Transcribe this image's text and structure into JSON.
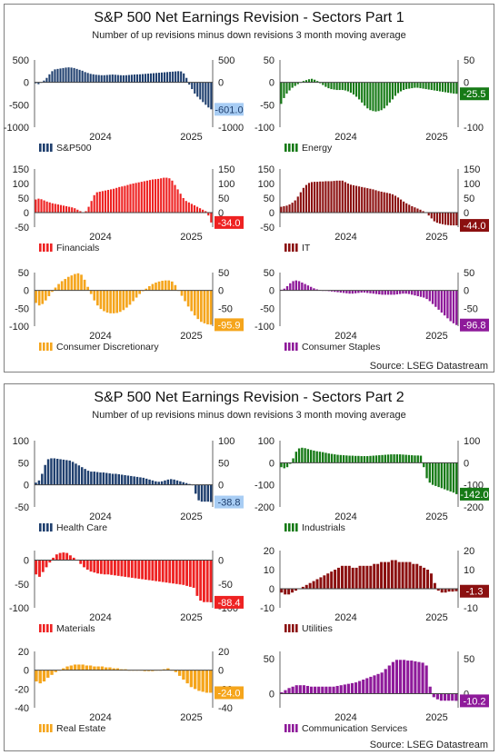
{
  "panels": [
    {
      "title": "S&P 500 Net Earnings Revision - Sectors Part 1",
      "subtitle": "Number of up revisions minus down revisions 3 month moving average",
      "source": "Source: LSEG Datastream"
    },
    {
      "title": "S&P 500 Net Earnings Revision - Sectors Part 2",
      "subtitle": "Number of up revisions minus down revisions 3 month moving average",
      "source": "Source: LSEG Datastream"
    }
  ],
  "chart_data": [
    {
      "type": "bar",
      "name": "S&P500",
      "color": "#1f3f6e",
      "label_color": "#a8cdf4",
      "label_text_color": "#1f3f6e",
      "last": "-601.0",
      "ylim": [
        -1000,
        500
      ],
      "left_ticks": [
        "500",
        "0",
        "-500",
        "-1000"
      ],
      "right_ticks": [
        "500",
        "0",
        "-500",
        "-1000"
      ],
      "right_label_visible": [
        true,
        true,
        false,
        true
      ],
      "x_ticks": [
        "2024",
        "2025"
      ],
      "values": [
        -20,
        -40,
        -10,
        40,
        100,
        180,
        250,
        290,
        300,
        310,
        320,
        330,
        335,
        330,
        320,
        300,
        280,
        260,
        230,
        210,
        190,
        180,
        170,
        165,
        160,
        160,
        165,
        170,
        175,
        170,
        165,
        160,
        158,
        160,
        165,
        170,
        175,
        178,
        180,
        185,
        190,
        195,
        200,
        205,
        210,
        215,
        220,
        225,
        230,
        235,
        240,
        245,
        250,
        245,
        200,
        100,
        -50,
        -150,
        -250,
        -320,
        -380,
        -440,
        -500,
        -560,
        -601
      ]
    },
    {
      "type": "bar",
      "name": "Energy",
      "color": "#167a16",
      "label_color": "#167a16",
      "label_text_color": "#ffffff",
      "last": "-25.5",
      "ylim": [
        -100,
        50
      ],
      "left_ticks": [
        "50",
        "0",
        "-50",
        "-100"
      ],
      "right_ticks": [
        "50",
        "0",
        "-50",
        "-100"
      ],
      "right_label_visible": [
        true,
        true,
        false,
        true
      ],
      "x_ticks": [
        "2024",
        "2025"
      ],
      "values": [
        -48,
        -35,
        -25,
        -18,
        -12,
        -8,
        -4,
        0,
        3,
        5,
        7,
        8,
        6,
        3,
        -2,
        -6,
        -10,
        -13,
        -15,
        -16,
        -17,
        -17,
        -17,
        -18,
        -20,
        -23,
        -27,
        -32,
        -38,
        -45,
        -52,
        -58,
        -62,
        -64,
        -65,
        -64,
        -62,
        -58,
        -52,
        -45,
        -38,
        -30,
        -24,
        -20,
        -17,
        -15,
        -14,
        -13,
        -12,
        -12,
        -13,
        -14,
        -15,
        -16,
        -17,
        -18,
        -19,
        -20,
        -21,
        -22,
        -23,
        -24,
        -25,
        -25.5
      ]
    },
    {
      "type": "bar",
      "name": "Financials",
      "color": "#ee2222",
      "label_color": "#ee2222",
      "label_text_color": "#ffffff",
      "last": "-34.0",
      "ylim": [
        -50,
        150
      ],
      "left_ticks": [
        "150",
        "100",
        "50",
        "0",
        "-50"
      ],
      "right_ticks": [
        "150",
        "100",
        "50",
        "0",
        "-50"
      ],
      "right_label_visible": [
        true,
        true,
        true,
        true,
        false
      ],
      "x_ticks": [
        "2024",
        "2025"
      ],
      "values": [
        45,
        48,
        46,
        42,
        38,
        35,
        32,
        30,
        28,
        26,
        24,
        22,
        20,
        18,
        15,
        10,
        5,
        0,
        5,
        20,
        40,
        60,
        70,
        72,
        74,
        76,
        78,
        80,
        82,
        85,
        88,
        90,
        92,
        95,
        98,
        100,
        102,
        104,
        106,
        108,
        110,
        112,
        114,
        115,
        116,
        118,
        120,
        120,
        118,
        110,
        95,
        80,
        65,
        50,
        40,
        35,
        30,
        25,
        20,
        15,
        10,
        5,
        -10,
        -34
      ]
    },
    {
      "type": "bar",
      "name": "IT",
      "color": "#8b1010",
      "label_color": "#8b1010",
      "label_text_color": "#ffffff",
      "last": "-44.0",
      "ylim": [
        -50,
        150
      ],
      "left_ticks": [
        "150",
        "100",
        "50",
        "0",
        "-50"
      ],
      "right_ticks": [
        "150",
        "100",
        "50",
        "0",
        "-50"
      ],
      "right_label_visible": [
        true,
        true,
        true,
        true,
        false
      ],
      "x_ticks": [
        "2024",
        "2025"
      ],
      "values": [
        20,
        22,
        24,
        28,
        34,
        42,
        55,
        70,
        85,
        95,
        102,
        105,
        106,
        106,
        107,
        107,
        108,
        108,
        108,
        109,
        110,
        110,
        110,
        105,
        100,
        96,
        94,
        92,
        90,
        88,
        86,
        84,
        82,
        80,
        77,
        74,
        72,
        70,
        68,
        66,
        63,
        58,
        52,
        45,
        38,
        32,
        27,
        22,
        18,
        14,
        10,
        5,
        0,
        -10,
        -20,
        -30,
        -35,
        -38,
        -40,
        -42,
        -43,
        -44,
        -44,
        -44
      ]
    },
    {
      "type": "bar",
      "name": "Consumer Discretionary",
      "color": "#f5a51c",
      "label_color": "#f5a51c",
      "label_text_color": "#ffffff",
      "last": "-95.9",
      "ylim": [
        -100,
        50
      ],
      "left_ticks": [
        "50",
        "0",
        "-50",
        "-100"
      ],
      "right_ticks": [
        "50",
        "0",
        "-50",
        "-100"
      ],
      "right_label_visible": [
        true,
        true,
        true,
        false
      ],
      "x_ticks": [
        "2024",
        "2025"
      ],
      "values": [
        -35,
        -42,
        -38,
        -28,
        -16,
        -4,
        8,
        18,
        26,
        32,
        38,
        42,
        46,
        48,
        44,
        30,
        10,
        -10,
        -28,
        -42,
        -52,
        -58,
        -62,
        -64,
        -64,
        -63,
        -60,
        -55,
        -48,
        -40,
        -30,
        -20,
        -10,
        -2,
        5,
        12,
        18,
        22,
        25,
        27,
        28,
        28,
        25,
        15,
        0,
        -15,
        -30,
        -45,
        -58,
        -70,
        -80,
        -88,
        -92,
        -95,
        -95.9
      ]
    },
    {
      "type": "bar",
      "name": "Consumer Staples",
      "color": "#8e1a9a",
      "label_color": "#8e1a9a",
      "label_text_color": "#ffffff",
      "last": "-96.8",
      "ylim": [
        -100,
        50
      ],
      "left_ticks": [
        "50",
        "0",
        "-50",
        "-100"
      ],
      "right_ticks": [
        "50",
        "0",
        "-50",
        "-100"
      ],
      "right_label_visible": [
        true,
        true,
        true,
        false
      ],
      "x_ticks": [
        "2024",
        "2025"
      ],
      "values": [
        2,
        5,
        12,
        20,
        26,
        28,
        26,
        22,
        18,
        14,
        10,
        6,
        3,
        1,
        0,
        -1,
        -2,
        -3,
        -4,
        -5,
        -6,
        -7,
        -8,
        -9,
        -9,
        -8,
        -7,
        -6,
        -6,
        -7,
        -8,
        -9,
        -10,
        -11,
        -12,
        -12,
        -12,
        -12,
        -12,
        -11,
        -10,
        -9,
        -9,
        -10,
        -12,
        -14,
        -16,
        -18,
        -20,
        -24,
        -30,
        -38,
        -46,
        -54,
        -62,
        -70,
        -78,
        -86,
        -92,
        -96.8
      ]
    },
    {
      "type": "bar",
      "name": "Health Care",
      "color": "#1f3f6e",
      "label_color": "#a8cdf4",
      "label_text_color": "#1f3f6e",
      "last": "-38.8",
      "ylim": [
        -50,
        100
      ],
      "left_ticks": [
        "100",
        "50",
        "0",
        "-50"
      ],
      "right_ticks": [
        "100",
        "50",
        "0",
        "-50"
      ],
      "right_label_visible": [
        true,
        true,
        true,
        false
      ],
      "x_ticks": [
        "2024",
        "2025"
      ],
      "values": [
        5,
        10,
        25,
        45,
        58,
        60,
        60,
        59,
        58,
        57,
        56,
        55,
        52,
        48,
        44,
        40,
        36,
        32,
        30,
        30,
        29,
        28,
        28,
        27,
        26,
        25,
        25,
        24,
        23,
        22,
        21,
        20,
        19,
        18,
        17,
        16,
        14,
        12,
        10,
        8,
        7,
        8,
        10,
        12,
        13,
        12,
        10,
        8,
        6,
        4,
        2,
        0,
        -20,
        -35,
        -38,
        -38,
        -38,
        -38.8
      ]
    },
    {
      "type": "bar",
      "name": "Industrials",
      "color": "#167a16",
      "label_color": "#167a16",
      "label_text_color": "#ffffff",
      "last": "-142.0",
      "ylim": [
        -200,
        100
      ],
      "left_ticks": [
        "100",
        "0",
        "-100",
        "-200"
      ],
      "right_ticks": [
        "100",
        "0",
        "-100",
        "-200"
      ],
      "right_label_visible": [
        true,
        true,
        true,
        true
      ],
      "x_ticks": [
        "2024",
        "2025"
      ],
      "values": [
        -20,
        -25,
        -20,
        -5,
        20,
        50,
        65,
        68,
        66,
        62,
        58,
        55,
        52,
        50,
        48,
        45,
        42,
        40,
        38,
        36,
        35,
        34,
        33,
        32,
        32,
        31,
        31,
        30,
        30,
        30,
        31,
        32,
        33,
        34,
        35,
        36,
        37,
        38,
        38,
        38,
        38,
        37,
        36,
        35,
        34,
        33,
        33,
        32,
        -20,
        -70,
        -90,
        -100,
        -105,
        -110,
        -115,
        -120,
        -125,
        -130,
        -135,
        -142
      ]
    },
    {
      "type": "bar",
      "name": "Materials",
      "color": "#ee2222",
      "label_color": "#ee2222",
      "label_text_color": "#ffffff",
      "last": "-88.4",
      "ylim": [
        -100,
        20
      ],
      "left_ticks": [
        "0",
        "-50",
        "-100"
      ],
      "right_ticks": [
        "0",
        "-50",
        "-100"
      ],
      "right_label_visible": [
        true,
        true,
        true
      ],
      "x_ticks": [
        "2024",
        "2025"
      ],
      "values": [
        -30,
        -35,
        -25,
        -15,
        -5,
        5,
        12,
        15,
        16,
        15,
        10,
        5,
        0,
        -8,
        -15,
        -20,
        -24,
        -26,
        -28,
        -29,
        -30,
        -30,
        -31,
        -32,
        -33,
        -34,
        -35,
        -36,
        -37,
        -38,
        -39,
        -40,
        -41,
        -42,
        -43,
        -44,
        -45,
        -46,
        -47,
        -48,
        -49,
        -50,
        -51,
        -52,
        -54,
        -56,
        -58,
        -75,
        -85,
        -88,
        -88,
        -88.4
      ]
    },
    {
      "type": "bar",
      "name": "Utilities",
      "color": "#8b1010",
      "label_color": "#8b1010",
      "label_text_color": "#ffffff",
      "last": "-1.3",
      "ylim": [
        -10,
        20
      ],
      "left_ticks": [
        "20",
        "10",
        "0",
        "-10"
      ],
      "right_ticks": [
        "20",
        "10",
        "0",
        "-10"
      ],
      "right_label_visible": [
        true,
        true,
        true,
        true
      ],
      "x_ticks": [
        "2024",
        "2025"
      ],
      "values": [
        -2,
        -3,
        -3,
        -2,
        -1,
        0,
        1,
        2,
        3,
        4,
        5,
        6,
        7,
        8,
        9,
        10,
        11,
        12,
        12,
        12,
        11,
        11,
        12,
        12,
        12,
        12,
        13,
        13,
        14,
        14,
        14,
        15,
        15,
        14,
        14,
        14,
        14,
        13,
        13,
        12,
        11,
        10,
        8,
        3,
        -1,
        -2,
        -2,
        -1.5,
        -1.5,
        -1.3
      ]
    },
    {
      "type": "bar",
      "name": "Real Estate",
      "color": "#f5a51c",
      "label_color": "#f5a51c",
      "label_text_color": "#ffffff",
      "last": "-24.0",
      "ylim": [
        -40,
        20
      ],
      "left_ticks": [
        "20",
        "0",
        "-20",
        "-40"
      ],
      "right_ticks": [
        "20",
        "0",
        "-20",
        "-40"
      ],
      "right_label_visible": [
        true,
        true,
        true,
        true
      ],
      "x_ticks": [
        "2024",
        "2025"
      ],
      "values": [
        -12,
        -14,
        -12,
        -8,
        -5,
        -2,
        0,
        2,
        4,
        5,
        6,
        6,
        6,
        5,
        5,
        4,
        4,
        4,
        3,
        3,
        2,
        2,
        1,
        1,
        0,
        0,
        0,
        0,
        -1,
        -1,
        -1,
        0,
        0,
        1,
        2,
        0,
        -2,
        -6,
        -10,
        -14,
        -18,
        -20,
        -22,
        -23,
        -24,
        -24
      ]
    },
    {
      "type": "bar",
      "name": "Communication Services",
      "color": "#8e1a9a",
      "label_color": "#8e1a9a",
      "label_text_color": "#ffffff",
      "last": "-10.2",
      "ylim": [
        -20,
        60
      ],
      "left_ticks": [
        "50",
        "0"
      ],
      "right_ticks": [
        "50",
        "0"
      ],
      "right_label_visible": [
        true,
        true
      ],
      "x_ticks": [
        "2024",
        "2025"
      ],
      "values": [
        2,
        5,
        8,
        10,
        12,
        12,
        12,
        11,
        10,
        10,
        10,
        10,
        10,
        10,
        10,
        11,
        12,
        13,
        14,
        15,
        16,
        18,
        20,
        22,
        24,
        26,
        28,
        30,
        35,
        40,
        45,
        48,
        48,
        48,
        47,
        47,
        46,
        45,
        44,
        40,
        10,
        -5,
        -8,
        -10,
        -10,
        -10,
        -10,
        -10.2
      ]
    }
  ]
}
